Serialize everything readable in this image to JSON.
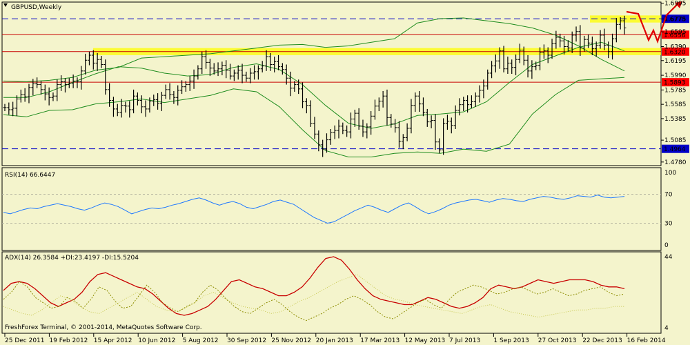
{
  "colors": {
    "background": "#f4f4cc",
    "bollinger": "#1e8c1e",
    "resistance_line": "#c80000",
    "dashed_line": "#0000c8",
    "highlight_band": "#ffff00",
    "arrow": "#e00000",
    "rsi": "#1e78ff",
    "adx": "#c80000",
    "plus_di": "#8c8c00",
    "minus_di": "#c8c850",
    "label_red": "#ff0000",
    "label_blue": "#0000c8"
  },
  "header": {
    "symbol_label": "GBPUSD,Weekly",
    "copyright": "FreshForex Terminal, © 2001-2014, MetaQuotes Software Corp."
  },
  "chart_data": [
    {
      "type": "candlestick",
      "title": "GBPUSD,Weekly",
      "y_axis_ticks": [
        "1.6995",
        "1.6775",
        "1.6595",
        "1.6390",
        "1.6195",
        "1.5990",
        "1.5785",
        "1.5585",
        "1.5385",
        "1.5085",
        "1.4780"
      ],
      "ylim": [
        1.473,
        1.7011
      ],
      "x_tick_labels": [
        "25 Dec 2011",
        "19 Feb 2012",
        "15 Apr 2012",
        "10 Jun 2012",
        "5 Aug 2012",
        "30 Sep 2012",
        "25 Nov 2012",
        "20 Jan 2013",
        "17 Mar 2013",
        "12 May 2013",
        "7 Jul 2013",
        "1 Sep 2013",
        "27 Oct 2013",
        "22 Dec 2013",
        "16 Feb 2014"
      ],
      "price_close_series": [
        1.554,
        1.551,
        1.553,
        1.566,
        1.572,
        1.569,
        1.582,
        1.587,
        1.586,
        1.579,
        1.573,
        1.568,
        1.57,
        1.586,
        1.59,
        1.586,
        1.588,
        1.591,
        1.59,
        1.605,
        1.62,
        1.627,
        1.616,
        1.621,
        1.614,
        1.579,
        1.564,
        1.552,
        1.547,
        1.557,
        1.556,
        1.551,
        1.57,
        1.564,
        1.555,
        1.552,
        1.563,
        1.565,
        1.56,
        1.571,
        1.579,
        1.572,
        1.568,
        1.578,
        1.583,
        1.586,
        1.591,
        1.598,
        1.608,
        1.625,
        1.617,
        1.609,
        1.605,
        1.608,
        1.613,
        1.606,
        1.598,
        1.602,
        1.606,
        1.599,
        1.595,
        1.602,
        1.604,
        1.608,
        1.612,
        1.625,
        1.614,
        1.618,
        1.611,
        1.607,
        1.595,
        1.581,
        1.586,
        1.58,
        1.562,
        1.557,
        1.532,
        1.517,
        1.502,
        1.496,
        1.509,
        1.519,
        1.522,
        1.528,
        1.522,
        1.52,
        1.538,
        1.546,
        1.528,
        1.52,
        1.527,
        1.542,
        1.556,
        1.563,
        1.57,
        1.54,
        1.531,
        1.526,
        1.507,
        1.512,
        1.525,
        1.557,
        1.57,
        1.559,
        1.547,
        1.534,
        1.536,
        1.506,
        1.495,
        1.532,
        1.535,
        1.529,
        1.55,
        1.558,
        1.564,
        1.558,
        1.562,
        1.57,
        1.578,
        1.584,
        1.602,
        1.612,
        1.619,
        1.633,
        1.608,
        1.616,
        1.61,
        1.621,
        1.634,
        1.62,
        1.605,
        1.611,
        1.613,
        1.631,
        1.633,
        1.627,
        1.643,
        1.652,
        1.647,
        1.639,
        1.637,
        1.655,
        1.66,
        1.637,
        1.649,
        1.644,
        1.636,
        1.641,
        1.655,
        1.641,
        1.632,
        1.65,
        1.67,
        1.675,
        1.665
      ],
      "bollinger_bands": {
        "upper": [
          1.591,
          1.59,
          1.592,
          1.596,
          1.606,
          1.61,
          1.623,
          1.625,
          1.627,
          1.629,
          1.633,
          1.637,
          1.641,
          1.642,
          1.638,
          1.64,
          1.645,
          1.65,
          1.672,
          1.678,
          1.679,
          1.675,
          1.671,
          1.665,
          1.655,
          1.64,
          1.621,
          1.605
        ],
        "middle": [
          1.568,
          1.568,
          1.576,
          1.589,
          1.601,
          1.611,
          1.609,
          1.602,
          1.598,
          1.6,
          1.61,
          1.615,
          1.607,
          1.586,
          1.557,
          1.532,
          1.525,
          1.531,
          1.543,
          1.545,
          1.548,
          1.562,
          1.589,
          1.614,
          1.626,
          1.638,
          1.645,
          1.633
        ],
        "lower": [
          1.544,
          1.541,
          1.55,
          1.551,
          1.559,
          1.562,
          1.566,
          1.561,
          1.566,
          1.571,
          1.58,
          1.576,
          1.555,
          1.523,
          1.494,
          1.485,
          1.485,
          1.49,
          1.492,
          1.49,
          1.496,
          1.493,
          1.503,
          1.545,
          1.572,
          1.592,
          1.594,
          1.596
        ]
      },
      "horizontal_levels": [
        {
          "label": "1.6778",
          "value": 1.6778,
          "style": "dashed-blue"
        },
        {
          "label": "1.6556",
          "value": 1.6556,
          "style": "solid-red"
        },
        {
          "label": "1.6320",
          "value": 1.632,
          "style": "solid-red"
        },
        {
          "label": "1.5893",
          "value": 1.5893,
          "style": "solid-red"
        },
        {
          "label": "1.4964",
          "value": 1.4964,
          "style": "dashed-blue"
        }
      ],
      "highlight_zones": [
        {
          "low": 1.628,
          "high": 1.636,
          "from_label": "15 Apr 2012",
          "to": "right-edge"
        },
        {
          "low": 1.6735,
          "high": 1.6815,
          "from_label": "22 Dec 2013",
          "to": "right-edge"
        }
      ],
      "forecast_arrow": "zigzag: down to 1.6556 area, up to 1.6320, then up past 1.6995"
    },
    {
      "type": "line",
      "title": "RSI(14) 66.6447",
      "ylim": [
        0,
        100
      ],
      "y_axis_ticks": [
        "100",
        "70",
        "30",
        "0"
      ],
      "reference_levels": [
        70,
        30
      ],
      "series": [
        {
          "name": "RSI(14)",
          "values": [
            45,
            43,
            46,
            49,
            51,
            50,
            53,
            55,
            57,
            55,
            53,
            50,
            48,
            51,
            55,
            58,
            56,
            53,
            48,
            43,
            46,
            49,
            51,
            50,
            52,
            55,
            57,
            60,
            63,
            65,
            62,
            58,
            55,
            58,
            60,
            57,
            52,
            50,
            53,
            56,
            60,
            62,
            59,
            56,
            50,
            44,
            38,
            34,
            30,
            32,
            37,
            42,
            47,
            51,
            55,
            52,
            48,
            45,
            50,
            55,
            58,
            53,
            47,
            43,
            46,
            50,
            55,
            58,
            60,
            62,
            63,
            61,
            59,
            62,
            64,
            63,
            61,
            60,
            63,
            65,
            67,
            66,
            64,
            63,
            65,
            68,
            67,
            66,
            69,
            66,
            65,
            66,
            67
          ]
        }
      ]
    },
    {
      "type": "line",
      "title": "ADX(14) 26.3584 +DI:23.4197 -DI:15.5204",
      "ylim": [
        4,
        44
      ],
      "y_axis_ticks": [
        "44",
        "4"
      ],
      "series": [
        {
          "name": "ADX(14)",
          "values": [
            25,
            29,
            30,
            29,
            26,
            22,
            18,
            16,
            18,
            20,
            24,
            30,
            34,
            35,
            33,
            31,
            29,
            27,
            26,
            23,
            19,
            15,
            12,
            11,
            12,
            14,
            16,
            20,
            25,
            30,
            31,
            29,
            27,
            26,
            24,
            22,
            22,
            24,
            27,
            32,
            38,
            43,
            44,
            42,
            37,
            31,
            26,
            22,
            20,
            19,
            18,
            17,
            17,
            19,
            21,
            20,
            18,
            16,
            15,
            16,
            18,
            21,
            26,
            28,
            27,
            26,
            27,
            29,
            31,
            30,
            29,
            30,
            31,
            31,
            31,
            30,
            28,
            27,
            27,
            26
          ]
        },
        {
          "name": "+DI",
          "values": [
            20,
            24,
            30,
            27,
            21,
            18,
            15,
            16,
            21,
            19,
            15,
            20,
            27,
            25,
            19,
            15,
            16,
            22,
            28,
            24,
            18,
            15,
            13,
            16,
            18,
            24,
            28,
            25,
            20,
            16,
            13,
            12,
            15,
            18,
            20,
            17,
            13,
            10,
            8,
            10,
            12,
            15,
            17,
            20,
            22,
            20,
            17,
            13,
            10,
            9,
            12,
            15,
            18,
            20,
            17,
            15,
            20,
            24,
            26,
            28,
            27,
            25,
            23,
            24,
            26,
            27,
            25,
            23,
            24,
            26,
            24,
            22,
            23,
            25,
            26,
            27,
            24,
            22,
            23
          ]
        },
        {
          "name": "-DI",
          "values": [
            16,
            14,
            12,
            11,
            14,
            18,
            22,
            20,
            16,
            13,
            12,
            15,
            18,
            21,
            24,
            20,
            16,
            14,
            13,
            15,
            18,
            22,
            24,
            21,
            18,
            16,
            15,
            14,
            12,
            13,
            16,
            19,
            21,
            24,
            27,
            30,
            32,
            34,
            30,
            26,
            22,
            20,
            19,
            17,
            16,
            15,
            14,
            13,
            12,
            14,
            16,
            17,
            15,
            13,
            12,
            11,
            10,
            11,
            12,
            13,
            14,
            14,
            15,
            15,
            16,
            16
          ]
        }
      ]
    }
  ]
}
